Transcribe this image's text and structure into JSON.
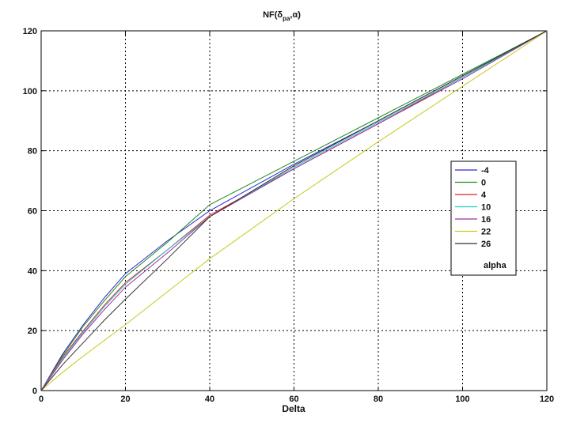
{
  "chart_data": {
    "type": "line",
    "title": "NF(δ_pa, α)",
    "title_main": "NF(δ",
    "title_sub": "pa",
    "title_tail": ",α)",
    "xlabel": "Delta",
    "ylabel": "",
    "xlim": [
      0,
      120
    ],
    "ylim": [
      0,
      120
    ],
    "xticks": [
      0,
      20,
      40,
      60,
      80,
      100,
      120
    ],
    "yticks": [
      0,
      20,
      40,
      60,
      80,
      100,
      120
    ],
    "grid": true,
    "legend_placement": "right",
    "legend_title": "alpha",
    "series": [
      {
        "name": "-4",
        "color": "#2b2bd0",
        "x": [
          0,
          5,
          10,
          15,
          20,
          30,
          40,
          60,
          80,
          100,
          120
        ],
        "y": [
          0,
          12,
          22,
          31,
          39,
          50,
          60,
          75.5,
          90,
          105,
          120
        ]
      },
      {
        "name": "0",
        "color": "#1f8a1f",
        "x": [
          0,
          5,
          10,
          15,
          20,
          30,
          40,
          60,
          80,
          100,
          120
        ],
        "y": [
          0,
          11.5,
          21.5,
          30,
          38,
          49.5,
          62,
          76.5,
          91,
          105.5,
          120
        ]
      },
      {
        "name": "4",
        "color": "#e02020",
        "x": [
          0,
          5,
          10,
          15,
          20,
          30,
          40,
          60,
          80,
          100,
          120
        ],
        "y": [
          0,
          11,
          20,
          28.5,
          36,
          47,
          58.5,
          74,
          89,
          104.5,
          120
        ]
      },
      {
        "name": "10",
        "color": "#20c8c8",
        "x": [
          0,
          5,
          10,
          15,
          20,
          30,
          40,
          60,
          80,
          100,
          120
        ],
        "y": [
          0,
          10.5,
          19.5,
          28,
          35.5,
          47,
          58,
          74.5,
          89.5,
          104.5,
          120
        ]
      },
      {
        "name": "16",
        "color": "#a030a0",
        "x": [
          0,
          5,
          10,
          15,
          20,
          30,
          40,
          60,
          80,
          100,
          120
        ],
        "y": [
          0,
          10,
          19,
          27,
          34.5,
          46,
          58,
          74,
          89,
          104,
          120
        ]
      },
      {
        "name": "22",
        "color": "#c8c820",
        "x": [
          0,
          5,
          10,
          20,
          30,
          40,
          60,
          80,
          100,
          120
        ],
        "y": [
          0,
          6,
          11.5,
          22,
          33,
          44,
          64,
          83,
          101.5,
          120
        ]
      },
      {
        "name": "26",
        "color": "#333333",
        "x": [
          0,
          5,
          10,
          15,
          20,
          30,
          40,
          60,
          80,
          100,
          120
        ],
        "y": [
          0,
          8.5,
          16,
          23.5,
          30.5,
          44,
          58,
          75,
          90,
          105,
          120
        ]
      }
    ]
  }
}
